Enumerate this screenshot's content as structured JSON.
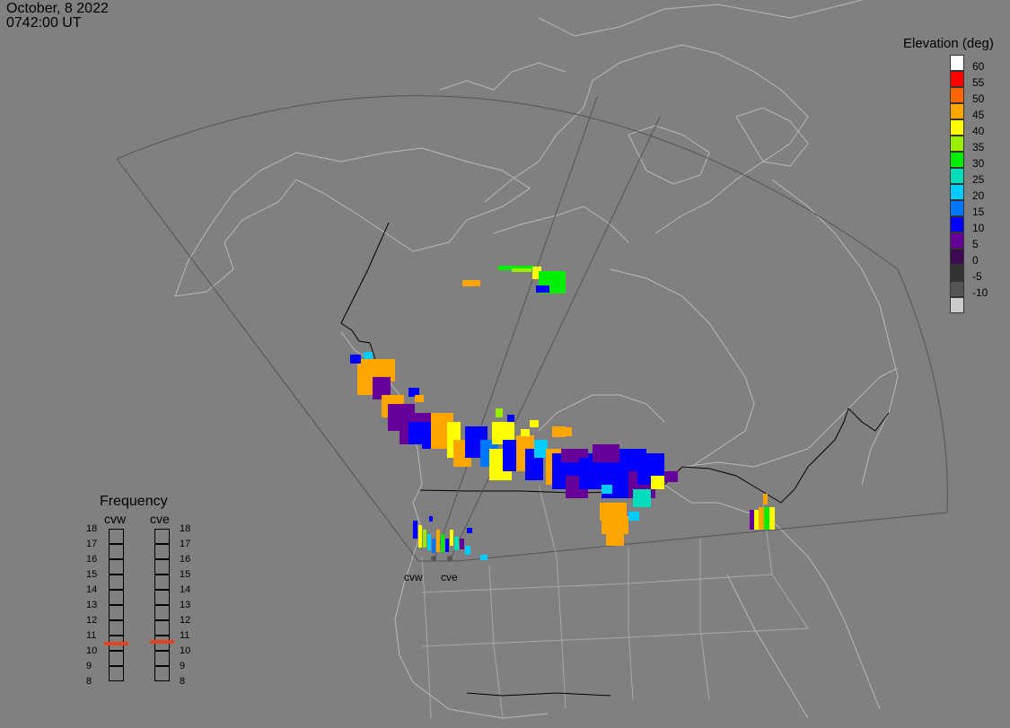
{
  "header": {
    "date": "October, 8 2022",
    "time": "0742:00 UT"
  },
  "colorbar": {
    "title": "Elevation (deg)",
    "entries": [
      {
        "label": "60",
        "color": "#ffffff"
      },
      {
        "label": "55",
        "color": "#ff0000"
      },
      {
        "label": "50",
        "color": "#ff6600"
      },
      {
        "label": "45",
        "color": "#ffa500"
      },
      {
        "label": "40",
        "color": "#ffff00"
      },
      {
        "label": "35",
        "color": "#99ee00"
      },
      {
        "label": "30",
        "color": "#00ee00"
      },
      {
        "label": "25",
        "color": "#00ddbb"
      },
      {
        "label": "20",
        "color": "#00ccff"
      },
      {
        "label": "15",
        "color": "#0077ff"
      },
      {
        "label": "10",
        "color": "#0000ff"
      },
      {
        "label": "5",
        "color": "#660099"
      },
      {
        "label": "0",
        "color": "#3d0a52"
      },
      {
        "label": "-5",
        "color": "#333333"
      },
      {
        "label": "-10",
        "color": "#555555"
      },
      {
        "label": "",
        "color": "#cccccc"
      }
    ]
  },
  "frequency": {
    "title": "Frequency",
    "radars": [
      {
        "name": "cvw",
        "value": 10.5
      },
      {
        "name": "cve",
        "value": 10.6
      }
    ],
    "scale": [
      "18",
      "17",
      "16",
      "15",
      "14",
      "13",
      "12",
      "11",
      "10",
      "9",
      "8"
    ]
  },
  "sites": [
    "cvw",
    "cve"
  ]
}
